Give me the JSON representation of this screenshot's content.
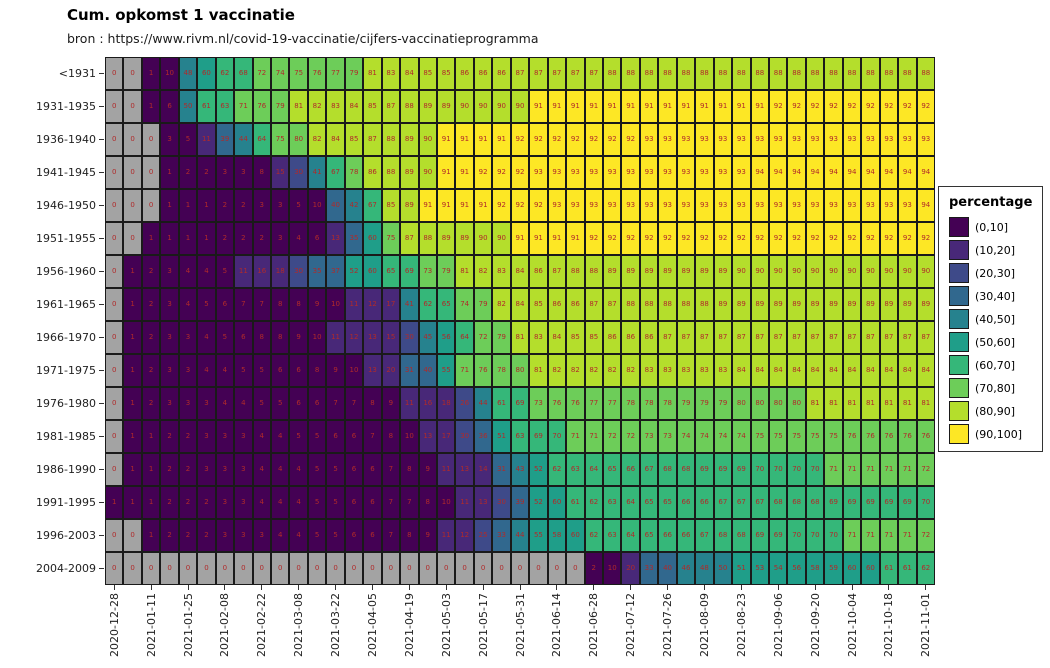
{
  "title": "Cum. opkomst 1 vaccinatie",
  "subtitle": "bron : https://www.rivm.nl/covid-19-vaccinatie/cijfers-vaccinatieprogramma",
  "legend": {
    "title": "percentage",
    "labels": [
      "(0,10]",
      "(10,20]",
      "(20,30]",
      "(30,40]",
      "(40,50]",
      "(50,60]",
      "(60,70]",
      "(70,80]",
      "(80,90]",
      "(90,100]"
    ]
  },
  "chart_data": {
    "type": "heatmap",
    "title": "Cum. opkomst 1 vaccinatie",
    "x_label_every": 2,
    "x": [
      "2020-12-28",
      "2021-01-04",
      "2021-01-11",
      "2021-01-18",
      "2021-01-25",
      "2021-02-01",
      "2021-02-08",
      "2021-02-15",
      "2021-02-22",
      "2021-03-01",
      "2021-03-08",
      "2021-03-15",
      "2021-03-22",
      "2021-03-29",
      "2021-04-05",
      "2021-04-12",
      "2021-04-19",
      "2021-04-26",
      "2021-05-03",
      "2021-05-10",
      "2021-05-17",
      "2021-05-24",
      "2021-05-31",
      "2021-06-07",
      "2021-06-14",
      "2021-06-21",
      "2021-06-28",
      "2021-07-05",
      "2021-07-12",
      "2021-07-19",
      "2021-07-26",
      "2021-08-02",
      "2021-08-09",
      "2021-08-16",
      "2021-08-23",
      "2021-08-30",
      "2021-09-06",
      "2021-09-13",
      "2021-09-20",
      "2021-09-27",
      "2021-10-04",
      "2021-10-11",
      "2021-10-18",
      "2021-10-25",
      "2021-11-01"
    ],
    "y": [
      "<1931",
      "1931-1935",
      "1936-1940",
      "1941-1945",
      "1946-1950",
      "1951-1955",
      "1956-1960",
      "1961-1965",
      "1966-1970",
      "1971-1975",
      "1976-1980",
      "1981-1985",
      "1986-1990",
      "1991-1995",
      "1996-2003",
      "2004-2009"
    ],
    "values": [
      [
        0,
        0,
        1,
        10,
        48,
        60,
        62,
        68,
        72,
        74,
        75,
        76,
        77,
        79,
        81,
        83,
        84,
        85,
        85,
        86,
        86,
        86,
        87,
        87,
        87,
        87,
        87,
        88,
        88,
        88,
        88,
        88,
        88,
        88,
        88,
        88,
        88,
        88,
        88,
        88,
        88,
        88,
        88,
        88,
        88
      ],
      [
        0,
        0,
        1,
        6,
        50,
        61,
        63,
        71,
        76,
        79,
        81,
        82,
        83,
        84,
        85,
        87,
        88,
        89,
        89,
        90,
        90,
        90,
        90,
        91,
        91,
        91,
        91,
        91,
        91,
        91,
        91,
        91,
        91,
        91,
        91,
        91,
        92,
        92,
        92,
        92,
        92,
        92,
        92,
        92,
        92
      ],
      [
        0,
        0,
        0,
        3,
        5,
        11,
        39,
        44,
        64,
        75,
        80,
        82,
        84,
        85,
        87,
        88,
        89,
        90,
        91,
        91,
        91,
        91,
        92,
        92,
        92,
        92,
        92,
        92,
        92,
        93,
        93,
        93,
        93,
        93,
        93,
        93,
        93,
        93,
        93,
        93,
        93,
        93,
        93,
        93,
        93
      ],
      [
        0,
        0,
        0,
        1,
        2,
        2,
        3,
        3,
        8,
        15,
        30,
        41,
        67,
        78,
        86,
        88,
        89,
        90,
        91,
        91,
        92,
        92,
        92,
        93,
        93,
        93,
        93,
        93,
        93,
        93,
        93,
        93,
        93,
        93,
        93,
        94,
        94,
        94,
        94,
        94,
        94,
        94,
        94,
        94,
        94
      ],
      [
        0,
        0,
        0,
        1,
        1,
        1,
        2,
        2,
        3,
        3,
        5,
        10,
        40,
        42,
        67,
        85,
        89,
        91,
        91,
        91,
        91,
        92,
        92,
        92,
        93,
        93,
        93,
        93,
        93,
        93,
        93,
        93,
        93,
        93,
        93,
        93,
        93,
        93,
        93,
        93,
        93,
        93,
        93,
        93,
        94
      ],
      [
        0,
        0,
        1,
        1,
        1,
        1,
        2,
        2,
        2,
        3,
        4,
        6,
        13,
        35,
        60,
        75,
        87,
        88,
        89,
        89,
        90,
        90,
        91,
        91,
        91,
        91,
        92,
        92,
        92,
        92,
        92,
        92,
        92,
        92,
        92,
        92,
        92,
        92,
        92,
        92,
        92,
        92,
        92,
        92,
        92
      ],
      [
        0,
        1,
        2,
        3,
        4,
        4,
        5,
        11,
        16,
        18,
        30,
        35,
        37,
        52,
        60,
        65,
        69,
        73,
        79,
        81,
        82,
        83,
        84,
        86,
        87,
        88,
        88,
        89,
        89,
        89,
        89,
        89,
        89,
        89,
        90,
        90,
        90,
        90,
        90,
        90,
        90,
        90,
        90,
        90,
        90
      ],
      [
        0,
        1,
        2,
        3,
        4,
        5,
        6,
        7,
        7,
        8,
        8,
        9,
        10,
        11,
        12,
        17,
        41,
        62,
        65,
        74,
        79,
        82,
        84,
        85,
        86,
        86,
        87,
        87,
        88,
        88,
        88,
        88,
        88,
        89,
        89,
        89,
        89,
        89,
        89,
        89,
        89,
        89,
        89,
        89,
        89
      ],
      [
        0,
        1,
        2,
        3,
        3,
        4,
        5,
        6,
        8,
        8,
        9,
        10,
        11,
        12,
        13,
        15,
        30,
        45,
        56,
        64,
        72,
        79,
        81,
        83,
        84,
        85,
        85,
        86,
        86,
        86,
        87,
        87,
        87,
        87,
        87,
        87,
        87,
        87,
        87,
        87,
        87,
        87,
        87,
        87,
        87
      ],
      [
        0,
        1,
        2,
        3,
        3,
        4,
        4,
        5,
        5,
        6,
        6,
        8,
        9,
        10,
        13,
        20,
        31,
        40,
        55,
        71,
        76,
        78,
        80,
        81,
        82,
        82,
        82,
        82,
        82,
        83,
        83,
        83,
        83,
        83,
        84,
        84,
        84,
        84,
        84,
        84,
        84,
        84,
        84,
        84,
        84
      ],
      [
        0,
        1,
        2,
        3,
        3,
        3,
        4,
        4,
        5,
        5,
        6,
        6,
        7,
        7,
        8,
        9,
        11,
        16,
        18,
        26,
        44,
        61,
        69,
        73,
        76,
        76,
        77,
        77,
        78,
        78,
        78,
        79,
        79,
        79,
        80,
        80,
        80,
        80,
        81,
        81,
        81,
        81,
        81,
        81,
        81
      ],
      [
        0,
        1,
        1,
        2,
        2,
        3,
        3,
        3,
        4,
        4,
        5,
        5,
        6,
        6,
        7,
        8,
        10,
        13,
        17,
        30,
        36,
        51,
        63,
        69,
        70,
        71,
        71,
        72,
        72,
        73,
        73,
        74,
        74,
        74,
        74,
        75,
        75,
        75,
        75,
        75,
        76,
        76,
        76,
        76,
        76
      ],
      [
        0,
        1,
        1,
        2,
        2,
        3,
        3,
        3,
        4,
        4,
        4,
        5,
        5,
        6,
        6,
        7,
        8,
        9,
        11,
        13,
        14,
        31,
        43,
        52,
        62,
        63,
        64,
        65,
        66,
        67,
        68,
        68,
        69,
        69,
        69,
        70,
        70,
        70,
        70,
        71,
        71,
        71,
        71,
        71,
        72
      ],
      [
        1,
        1,
        1,
        2,
        2,
        2,
        3,
        3,
        4,
        4,
        4,
        5,
        5,
        6,
        6,
        7,
        7,
        8,
        10,
        11,
        13,
        30,
        39,
        52,
        60,
        61,
        62,
        63,
        64,
        65,
        65,
        66,
        66,
        67,
        67,
        67,
        68,
        68,
        68,
        69,
        69,
        69,
        69,
        69,
        70
      ],
      [
        0,
        0,
        1,
        2,
        2,
        2,
        3,
        3,
        3,
        4,
        4,
        5,
        5,
        6,
        6,
        7,
        8,
        9,
        11,
        12,
        25,
        33,
        44,
        55,
        58,
        60,
        62,
        63,
        64,
        65,
        66,
        66,
        67,
        68,
        68,
        69,
        69,
        70,
        70,
        70,
        71,
        71,
        71,
        71,
        72
      ],
      [
        0,
        0,
        0,
        0,
        0,
        0,
        0,
        0,
        0,
        0,
        0,
        0,
        0,
        0,
        0,
        0,
        0,
        0,
        0,
        0,
        0,
        0,
        0,
        0,
        0,
        0,
        2,
        10,
        20,
        33,
        40,
        46,
        48,
        50,
        51,
        53,
        54,
        56,
        58,
        59,
        60,
        60,
        61,
        61,
        62
      ]
    ],
    "bins": [
      "(0,10]",
      "(10,20]",
      "(20,30]",
      "(30,40]",
      "(40,50]",
      "(50,60]",
      "(60,70]",
      "(70,80]",
      "(80,90]",
      "(90,100]"
    ],
    "bin_colors": [
      "#440154",
      "#482878",
      "#3E4A89",
      "#31688E",
      "#26828E",
      "#1F9E89",
      "#35B779",
      "#6DCD59",
      "#B4DE2C",
      "#FDE725"
    ],
    "na_color": "#a3a3a3",
    "value_text_color": "#b02a2a",
    "xlabel": "",
    "ylabel": "",
    "legend_title": "percentage",
    "legend_position": "right",
    "grid": false
  }
}
